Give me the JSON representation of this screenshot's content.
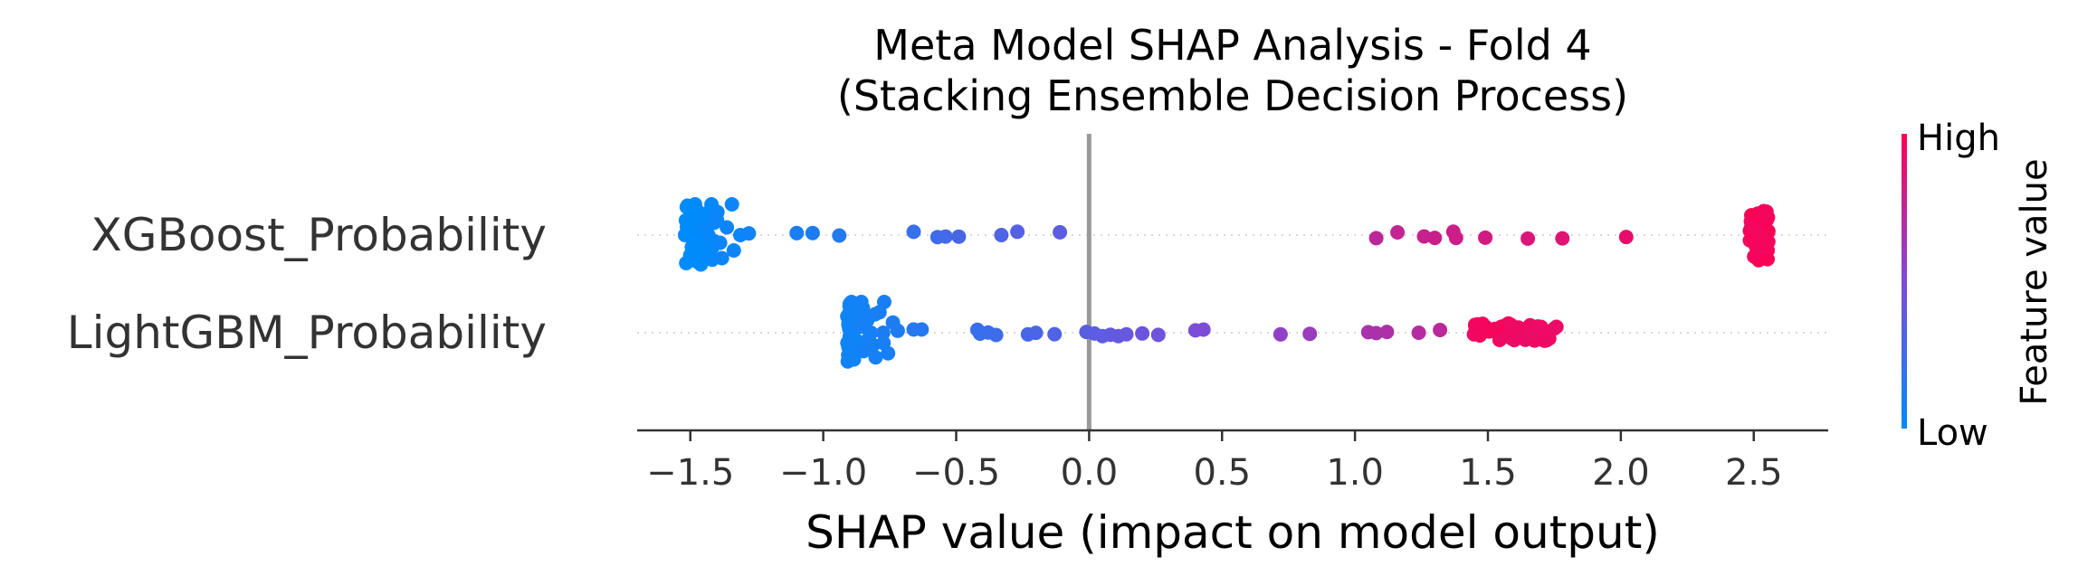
{
  "chart_data": {
    "type": "scatter",
    "title_line1": "Meta Model SHAP Analysis - Fold 4",
    "title_line2": "(Stacking Ensemble Decision Process)",
    "xlabel": "SHAP value (impact on model output)",
    "xlim": [
      -1.7,
      2.78
    ],
    "xticks": [
      -1.5,
      -1.0,
      -0.5,
      0.0,
      0.5,
      1.0,
      1.5,
      2.0,
      2.5
    ],
    "xtick_labels": [
      "−1.5",
      "−1.0",
      "−0.5",
      "0.0",
      "0.5",
      "1.0",
      "1.5",
      "2.0",
      "2.5"
    ],
    "features": [
      {
        "name": "XGBoost_Probability",
        "clusters": [
          {
            "x": -1.49,
            "count": 46,
            "spread": 0.03,
            "color_value": 0.0
          },
          {
            "x": -1.43,
            "count": 10,
            "spread": 0.025,
            "color_value": 0.02
          },
          {
            "x": -1.35,
            "count": 8,
            "spread": 0.05,
            "color_value": 0.04
          }
        ],
        "points": [
          {
            "x": -1.28,
            "color_value": 0.05
          },
          {
            "x": -1.1,
            "color_value": 0.1
          },
          {
            "x": -1.04,
            "color_value": 0.12
          },
          {
            "x": -0.94,
            "color_value": 0.14
          },
          {
            "x": -0.66,
            "color_value": 0.22
          },
          {
            "x": -0.57,
            "color_value": 0.25
          },
          {
            "x": -0.54,
            "color_value": 0.26
          },
          {
            "x": -0.49,
            "color_value": 0.28
          },
          {
            "x": -0.33,
            "color_value": 0.31
          },
          {
            "x": -0.27,
            "color_value": 0.33
          },
          {
            "x": -0.11,
            "color_value": 0.36
          },
          {
            "x": 1.08,
            "color_value": 0.74
          },
          {
            "x": 1.16,
            "color_value": 0.76
          },
          {
            "x": 1.26,
            "color_value": 0.78
          },
          {
            "x": 1.3,
            "color_value": 0.79
          },
          {
            "x": 1.37,
            "color_value": 0.8
          },
          {
            "x": 1.38,
            "color_value": 0.8
          },
          {
            "x": 1.49,
            "color_value": 0.82
          },
          {
            "x": 1.65,
            "color_value": 0.85
          },
          {
            "x": 1.78,
            "color_value": 0.87
          },
          {
            "x": 2.02,
            "color_value": 0.91
          }
        ],
        "tail_cluster": {
          "x": 2.52,
          "count": 50,
          "spread": 0.035,
          "color_value": 1.0
        }
      },
      {
        "name": "LightGBM_Probability",
        "clusters": [
          {
            "x": -0.89,
            "count": 30,
            "spread": 0.02,
            "color_value": 0.06
          },
          {
            "x": -0.83,
            "count": 10,
            "spread": 0.03,
            "color_value": 0.08
          },
          {
            "x": -0.76,
            "count": 6,
            "spread": 0.03,
            "color_value": 0.1
          }
        ],
        "points": [
          {
            "x": -0.72,
            "color_value": 0.12
          },
          {
            "x": -0.66,
            "color_value": 0.14
          },
          {
            "x": -0.63,
            "color_value": 0.15
          },
          {
            "x": -0.42,
            "color_value": 0.22
          },
          {
            "x": -0.41,
            "color_value": 0.22
          },
          {
            "x": -0.38,
            "color_value": 0.23
          },
          {
            "x": -0.35,
            "color_value": 0.24
          },
          {
            "x": -0.23,
            "color_value": 0.28
          },
          {
            "x": -0.2,
            "color_value": 0.29
          },
          {
            "x": -0.13,
            "color_value": 0.31
          },
          {
            "x": -0.01,
            "color_value": 0.35
          },
          {
            "x": 0.02,
            "color_value": 0.36
          },
          {
            "x": 0.05,
            "color_value": 0.37
          },
          {
            "x": 0.08,
            "color_value": 0.38
          },
          {
            "x": 0.11,
            "color_value": 0.39
          },
          {
            "x": 0.14,
            "color_value": 0.4
          },
          {
            "x": 0.2,
            "color_value": 0.42
          },
          {
            "x": 0.26,
            "color_value": 0.44
          },
          {
            "x": 0.4,
            "color_value": 0.48
          },
          {
            "x": 0.43,
            "color_value": 0.49
          },
          {
            "x": 0.72,
            "color_value": 0.57
          },
          {
            "x": 0.83,
            "color_value": 0.6
          },
          {
            "x": 1.05,
            "color_value": 0.66
          },
          {
            "x": 1.08,
            "color_value": 0.67
          },
          {
            "x": 1.12,
            "color_value": 0.68
          },
          {
            "x": 1.24,
            "color_value": 0.71
          },
          {
            "x": 1.32,
            "color_value": 0.73
          }
        ],
        "tail_cluster": {
          "x": 1.6,
          "count": 48,
          "spread": 0.16,
          "color_value": 0.97
        }
      }
    ],
    "colorbar": {
      "title": "Feature value",
      "high_label": "High",
      "low_label": "Low",
      "low_color": "#008bfb",
      "high_color": "#ff0052"
    },
    "grid": false,
    "zero_line_color": "#999999"
  }
}
